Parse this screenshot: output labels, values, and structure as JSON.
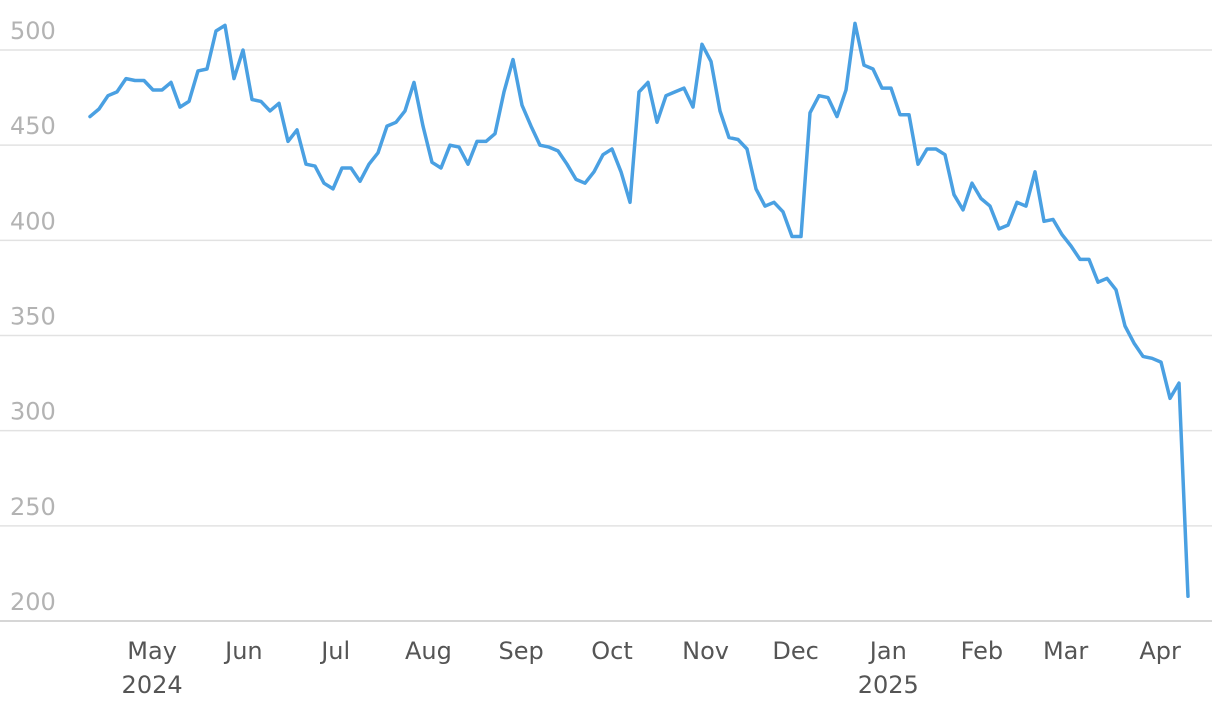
{
  "chart_data": {
    "type": "line",
    "xlim": [
      0,
      122
    ],
    "ylim": [
      200,
      500
    ],
    "yticks": [
      200,
      250,
      300,
      350,
      400,
      450,
      500
    ],
    "xticks": [
      {
        "value": 6.9,
        "label": "May"
      },
      {
        "value": 17.1,
        "label": "Jun"
      },
      {
        "value": 27.3,
        "label": "Jul"
      },
      {
        "value": 37.6,
        "label": "Aug"
      },
      {
        "value": 47.9,
        "label": "Sep"
      },
      {
        "value": 58,
        "label": "Oct"
      },
      {
        "value": 68.4,
        "label": "Nov"
      },
      {
        "value": 78.4,
        "label": "Dec"
      },
      {
        "value": 88.7,
        "label": "Jan"
      },
      {
        "value": 99.1,
        "label": "Feb"
      },
      {
        "value": 108.4,
        "label": "Mar"
      },
      {
        "value": 118.9,
        "label": "Apr"
      }
    ],
    "year_labels": [
      {
        "value": 6.9,
        "label": "2024"
      },
      {
        "value": 88.7,
        "label": "2025"
      }
    ],
    "grid": true,
    "series": [
      {
        "color": "#4aa0e2",
        "values": [
          465,
          469,
          476,
          478,
          485,
          484,
          484,
          479,
          479,
          483,
          470,
          473,
          489,
          490,
          510,
          513,
          485,
          500,
          474,
          473,
          468,
          472,
          452,
          458,
          440,
          439,
          430,
          427,
          438,
          438,
          431,
          440,
          446,
          460,
          462,
          468,
          483,
          460,
          441,
          438,
          450,
          449,
          440,
          452,
          452,
          456,
          478,
          495,
          471,
          460,
          450,
          449,
          447,
          440,
          432,
          430,
          436,
          445,
          448,
          436,
          420,
          478,
          483,
          462,
          476,
          478,
          480,
          470,
          503,
          494,
          468,
          454,
          453,
          448,
          427,
          418,
          420,
          415,
          402,
          402,
          467,
          476,
          475,
          465,
          479,
          514,
          492,
          490,
          480,
          480,
          466,
          466,
          440,
          448,
          448,
          445,
          424,
          416,
          430,
          422,
          418,
          406,
          408,
          420,
          418,
          436,
          410,
          411,
          403,
          397,
          390,
          390,
          378,
          380,
          374,
          355,
          346,
          339,
          338,
          336,
          317,
          325,
          213
        ]
      }
    ]
  }
}
